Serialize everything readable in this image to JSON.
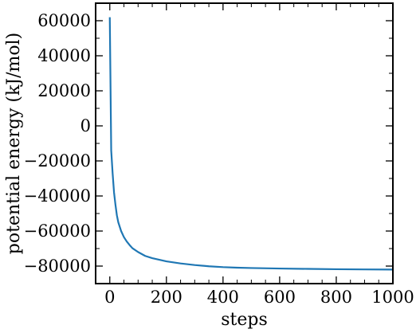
{
  "chart_data": {
    "type": "line",
    "title": "",
    "xlabel": "steps",
    "ylabel": "potential energy (kJ/mol)",
    "xlim": [
      -50,
      1000
    ],
    "ylim": [
      -90000,
      70000
    ],
    "xticks": [
      0,
      200,
      400,
      600,
      800,
      1000
    ],
    "yticks": [
      -80000,
      -60000,
      -40000,
      -20000,
      0,
      20000,
      40000,
      60000
    ],
    "x_tick_labels": [
      "0",
      "200",
      "400",
      "600",
      "800",
      "1000"
    ],
    "y_tick_labels": [
      "−80000",
      "−60000",
      "−40000",
      "−20000",
      "0",
      "20000",
      "40000",
      "60000"
    ],
    "grid": false,
    "series": [
      {
        "color": "#1f77b4",
        "x": [
          0,
          5,
          10,
          15,
          20,
          25,
          30,
          40,
          50,
          60,
          70,
          80,
          100,
          125,
          150,
          200,
          250,
          300,
          350,
          400,
          450,
          500,
          600,
          700,
          800,
          900,
          1000
        ],
        "y": [
          62000,
          -14000,
          -27000,
          -38000,
          -45000,
          -51000,
          -55000,
          -60000,
          -63500,
          -66000,
          -68000,
          -69800,
          -72000,
          -74200,
          -75500,
          -77300,
          -78500,
          -79400,
          -80100,
          -80600,
          -80900,
          -81100,
          -81400,
          -81600,
          -81800,
          -81900,
          -82000
        ]
      }
    ]
  }
}
